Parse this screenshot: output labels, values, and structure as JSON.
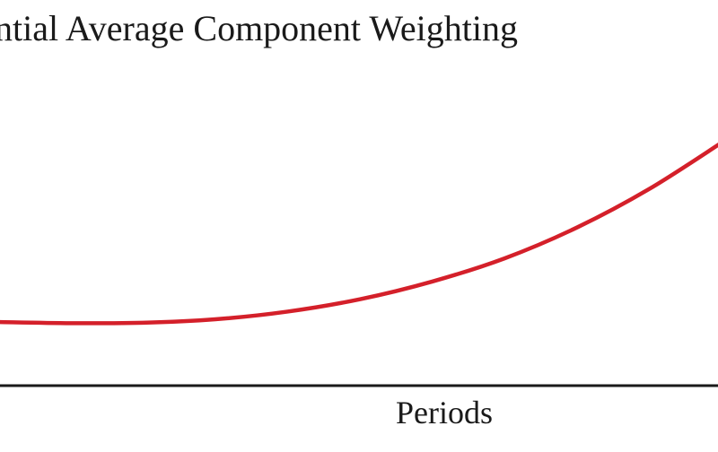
{
  "chart_data": {
    "type": "line",
    "title": "ntial Average Component Weighting",
    "xlabel": "Periods",
    "ylabel": "",
    "series": [
      {
        "x": [
          0,
          1,
          2,
          3,
          4,
          5,
          6,
          7,
          8,
          9,
          10
        ],
        "y": [
          0.165,
          0.162,
          0.163,
          0.172,
          0.192,
          0.224,
          0.27,
          0.33,
          0.41,
          0.51,
          0.63
        ]
      }
    ],
    "xlim": [
      0,
      10
    ],
    "ylim": [
      0,
      1
    ],
    "grid": false,
    "line_color": "#d4202a",
    "axis_color": "#1a1a1a"
  }
}
